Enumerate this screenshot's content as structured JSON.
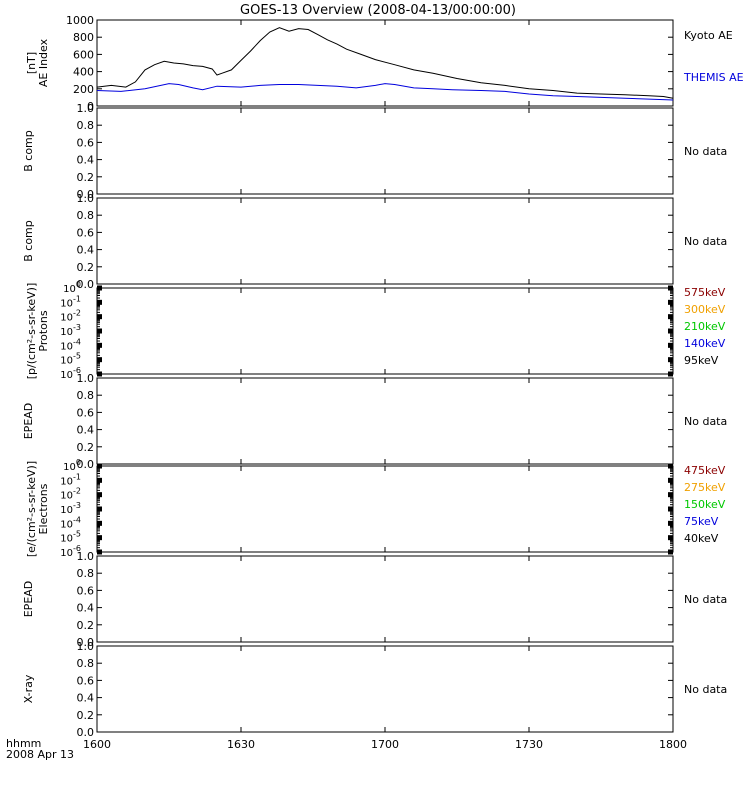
{
  "title": "GOES-13 Overview (2008-04-13/00:00:00)",
  "x_axis": {
    "ticks": [
      "1600",
      "1630",
      "1700",
      "1730",
      "1800"
    ],
    "tick_values": [
      0,
      30,
      60,
      90,
      120
    ],
    "range": [
      0,
      120
    ],
    "corner_label_1": "hhmm",
    "corner_label_2": "2008 Apr 13"
  },
  "colors": {
    "black": "#000000",
    "blue": "#0000dd",
    "dark_red": "#8b0000",
    "orange": "#f0a000",
    "green": "#00c800"
  },
  "chart_data": [
    {
      "type": "line",
      "ylabel_lines": [
        "AE Index",
        "[nT]"
      ],
      "yticks": [
        "1000",
        "800",
        "600",
        "400",
        "200",
        "0"
      ],
      "ylim": [
        0,
        1000
      ],
      "grid": false,
      "legend": "right",
      "series": [
        {
          "name": "Kyoto AE",
          "color": "#000000",
          "x": [
            0,
            3,
            6,
            8,
            10,
            12,
            14,
            16,
            18,
            20,
            22,
            24,
            25,
            26,
            28,
            30,
            32,
            34,
            36,
            38,
            40,
            42,
            44,
            46,
            48,
            50,
            52,
            55,
            58,
            62,
            66,
            70,
            75,
            80,
            85,
            90,
            95,
            100,
            105,
            110,
            115,
            118,
            120
          ],
          "y": [
            220,
            240,
            220,
            280,
            420,
            480,
            520,
            500,
            490,
            470,
            460,
            430,
            360,
            380,
            420,
            530,
            640,
            760,
            860,
            910,
            870,
            900,
            890,
            830,
            770,
            720,
            660,
            600,
            540,
            480,
            420,
            380,
            320,
            270,
            240,
            200,
            180,
            150,
            140,
            130,
            120,
            110,
            90
          ]
        },
        {
          "name": "THEMIS AE",
          "color": "#0000dd",
          "x": [
            0,
            5,
            10,
            15,
            17,
            20,
            22,
            25,
            30,
            34,
            38,
            42,
            46,
            50,
            54,
            58,
            60,
            62,
            66,
            70,
            74,
            80,
            85,
            90,
            95,
            100,
            105,
            110,
            115,
            120
          ],
          "y": [
            180,
            170,
            200,
            260,
            250,
            210,
            190,
            230,
            220,
            240,
            250,
            250,
            240,
            230,
            210,
            240,
            260,
            250,
            210,
            200,
            190,
            180,
            170,
            140,
            120,
            110,
            100,
            90,
            80,
            70
          ]
        }
      ]
    },
    {
      "type": "line",
      "ylabel_lines": [
        "B comp"
      ],
      "yticks": [
        "1.0",
        "0.8",
        "0.6",
        "0.4",
        "0.2",
        "0.0"
      ],
      "ylim": [
        0,
        1
      ],
      "note": "No data",
      "series": []
    },
    {
      "type": "line",
      "ylabel_lines": [
        "B comp"
      ],
      "yticks": [
        "1.0",
        "0.8",
        "0.6",
        "0.4",
        "0.2",
        "0.0"
      ],
      "ylim": [
        0,
        1
      ],
      "note": "No data",
      "series": []
    },
    {
      "type": "line",
      "ylabel_lines": [
        "Protons",
        "[p/(cm²-s-sr-keV)]"
      ],
      "yscale": "log",
      "ylim": [
        1e-06,
        1
      ],
      "ytick_exponents": [
        "0",
        "-1",
        "-2",
        "-3",
        "-4",
        "-5",
        "-6"
      ],
      "legend": "right",
      "legend_entries": [
        {
          "label": "575keV",
          "color": "#8b0000"
        },
        {
          "label": "300keV",
          "color": "#f0a000"
        },
        {
          "label": "210keV",
          "color": "#00c800"
        },
        {
          "label": "140keV",
          "color": "#0000dd"
        },
        {
          "label": "95keV",
          "color": "#000000"
        }
      ],
      "series": []
    },
    {
      "type": "line",
      "ylabel_lines": [
        "EPEAD"
      ],
      "yticks": [
        "1.0",
        "0.8",
        "0.6",
        "0.4",
        "0.2",
        "0.0"
      ],
      "ylim": [
        0,
        1
      ],
      "note": "No data",
      "series": []
    },
    {
      "type": "line",
      "ylabel_lines": [
        "Electrons",
        "[e/(cm²-s-sr-keV)]"
      ],
      "yscale": "log",
      "ylim": [
        1e-06,
        1
      ],
      "ytick_exponents": [
        "0",
        "-1",
        "-2",
        "-3",
        "-4",
        "-5",
        "-6"
      ],
      "legend": "right",
      "legend_entries": [
        {
          "label": "475keV",
          "color": "#8b0000"
        },
        {
          "label": "275keV",
          "color": "#f0a000"
        },
        {
          "label": "150keV",
          "color": "#00c800"
        },
        {
          "label": "75keV",
          "color": "#0000dd"
        },
        {
          "label": "40keV",
          "color": "#000000"
        }
      ],
      "series": []
    },
    {
      "type": "line",
      "ylabel_lines": [
        "EPEAD"
      ],
      "yticks": [
        "1.0",
        "0.8",
        "0.6",
        "0.4",
        "0.2",
        "0.0"
      ],
      "ylim": [
        0,
        1
      ],
      "note": "No data",
      "series": []
    },
    {
      "type": "line",
      "ylabel_lines": [
        "X-ray"
      ],
      "yticks": [
        "1.0",
        "0.8",
        "0.6",
        "0.4",
        "0.2",
        "0.0"
      ],
      "ylim": [
        0,
        1
      ],
      "note": "No data",
      "series": []
    }
  ]
}
